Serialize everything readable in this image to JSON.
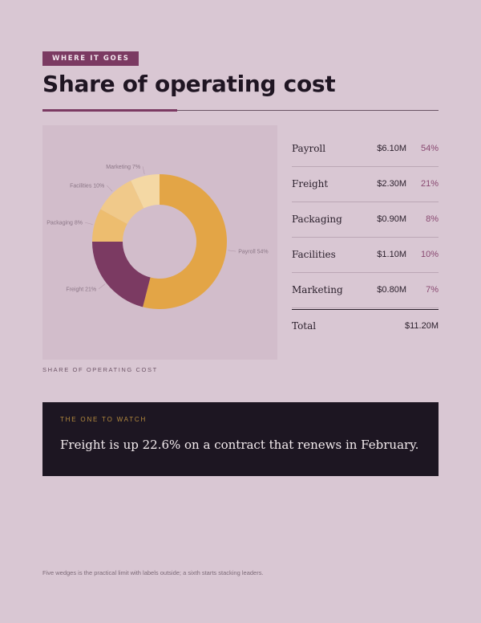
{
  "header": {
    "kicker": "WHERE IT GOES",
    "title": "Share of operating cost"
  },
  "chart_data": {
    "type": "pie",
    "title": "Share of operating cost",
    "caption": "SHARE OF OPERATING COST",
    "slices": [
      {
        "label": "Payroll",
        "value": 54,
        "amount": "$6.10M",
        "color": "#e3a546"
      },
      {
        "label": "Freight",
        "value": 21,
        "amount": "$2.30M",
        "color": "#7b3a62"
      },
      {
        "label": "Packaging",
        "value": 8,
        "amount": "$0.90M",
        "color": "#edbd6f"
      },
      {
        "label": "Facilities",
        "value": 10,
        "amount": "$1.10M",
        "color": "#f0c98a"
      },
      {
        "label": "Marketing",
        "value": 7,
        "amount": "$0.80M",
        "color": "#f4d8a4"
      }
    ]
  },
  "table": {
    "rows": [
      {
        "label": "Payroll",
        "amount": "$6.10M",
        "pct": "54%"
      },
      {
        "label": "Freight",
        "amount": "$2.30M",
        "pct": "21%"
      },
      {
        "label": "Packaging",
        "amount": "$0.90M",
        "pct": "8%"
      },
      {
        "label": "Facilities",
        "amount": "$1.10M",
        "pct": "10%"
      },
      {
        "label": "Marketing",
        "amount": "$0.80M",
        "pct": "7%"
      }
    ],
    "total_label": "Total",
    "total_amount": "$11.20M"
  },
  "callout": {
    "eyebrow": "THE ONE TO WATCH",
    "text": "Freight is up 22.6% on a contract that renews in February."
  },
  "footnote": "Five wedges is the practical limit with labels outside; a sixth starts stacking leaders."
}
